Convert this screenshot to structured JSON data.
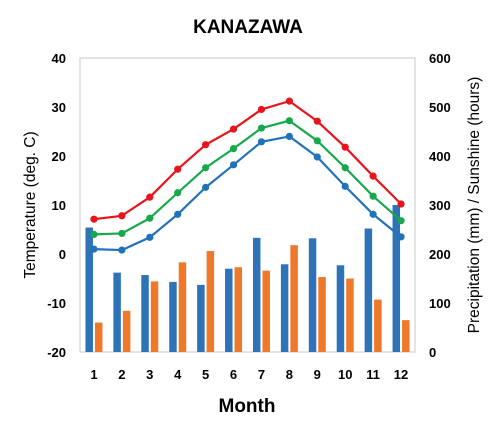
{
  "chart_data": {
    "title": "KANAZAWA",
    "xlabel": "Month",
    "ylabel_left": "Temperature (deg. C)",
    "ylabel_right": "Precipitation (mm) / Sunshine (hours)",
    "categories": [
      "1",
      "2",
      "3",
      "4",
      "5",
      "6",
      "7",
      "8",
      "9",
      "10",
      "11",
      "12"
    ],
    "ylim_left": [
      -20,
      40
    ],
    "yticks_left": [
      "40",
      "30",
      "20",
      "10",
      "0",
      "-10",
      "-20"
    ],
    "ylim_right": [
      0,
      600
    ],
    "yticks_right": [
      "600",
      "500",
      "400",
      "300",
      "200",
      "100",
      "0"
    ],
    "grid": "none",
    "lines": [
      {
        "key": "high",
        "color": "#e8141c",
        "values": [
          7.1,
          7.8,
          11.6,
          17.3,
          22.3,
          25.5,
          29.5,
          31.2,
          27.1,
          21.8,
          15.9,
          10.2
        ]
      },
      {
        "key": "mean",
        "color": "#18a84c",
        "values": [
          4.0,
          4.2,
          7.3,
          12.5,
          17.6,
          21.5,
          25.7,
          27.2,
          23.1,
          17.6,
          11.8,
          6.8
        ]
      },
      {
        "key": "low",
        "color": "#2272b9",
        "values": [
          1.0,
          0.8,
          3.4,
          8.1,
          13.6,
          18.2,
          22.9,
          24.0,
          19.8,
          13.8,
          8.1,
          3.5
        ]
      }
    ],
    "bars": [
      {
        "key": "precipitation",
        "color": "#2e73b8",
        "values": [
          254,
          162,
          157,
          143,
          137,
          170,
          233,
          179,
          232,
          177,
          252,
          300
        ]
      },
      {
        "key": "sunshine",
        "color": "#f0782a",
        "values": [
          60,
          84,
          144,
          183,
          206,
          173,
          166,
          218,
          153,
          150,
          107,
          65
        ]
      }
    ]
  }
}
